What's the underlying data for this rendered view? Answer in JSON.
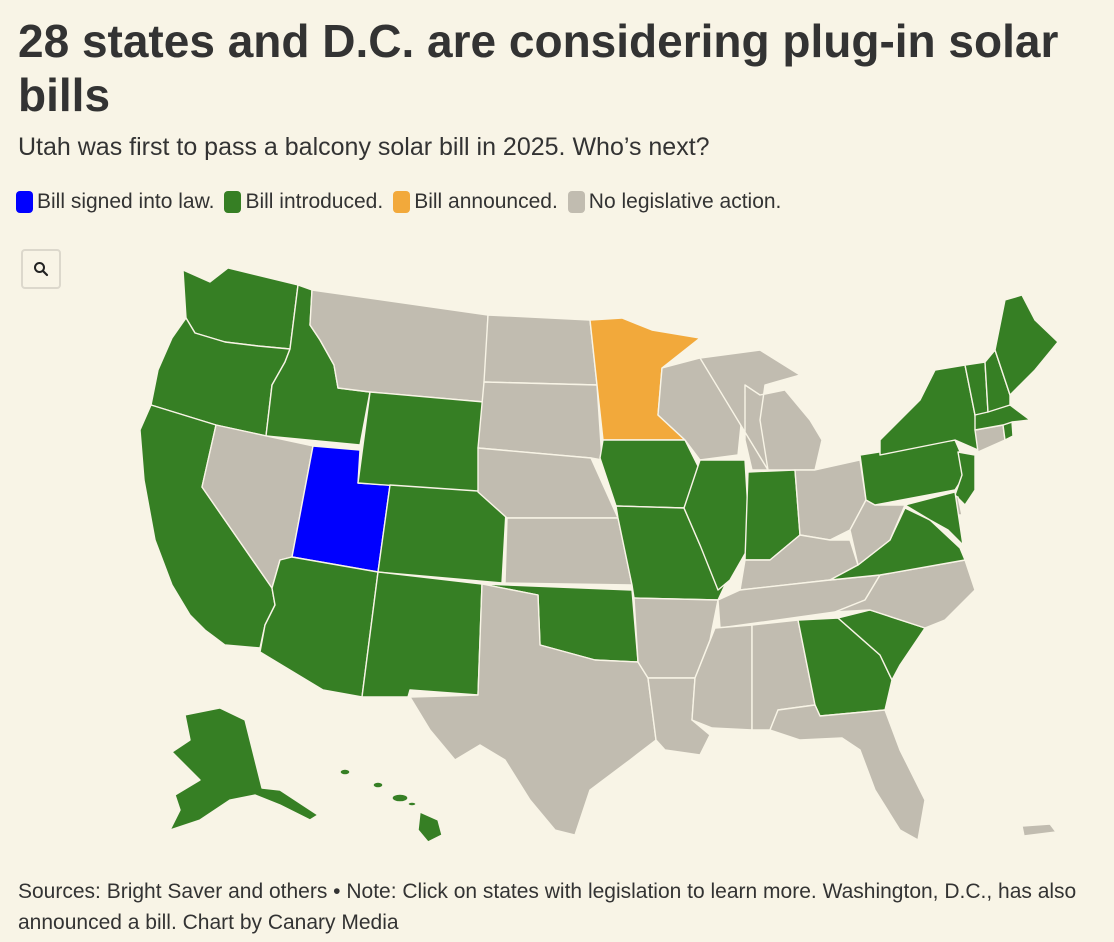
{
  "title": "28 states and D.C. are considering plug-in solar bills",
  "subtitle": "Utah was first to pass a balcony solar bill in 2025. Who’s next?",
  "legend": [
    {
      "label": "Bill signed into law.",
      "color": "#0000ff",
      "status": "signed"
    },
    {
      "label": "Bill introduced.",
      "color": "#367f24",
      "status": "introduced"
    },
    {
      "label": "Bill announced.",
      "color": "#f2a93b",
      "status": "announced"
    },
    {
      "label": "No legislative action.",
      "color": "#c1bcb0",
      "status": "none"
    }
  ],
  "zoom_icon": "search-icon",
  "footer": "Sources: Bright Saver and others • Note: Click on states with legislation to learn more. Washington, D.C., has also announced a bill. Chart by Canary Media",
  "states": {
    "WA": "introduced",
    "OR": "introduced",
    "CA": "introduced",
    "ID": "introduced",
    "NV": "none",
    "UT": "signed",
    "AZ": "introduced",
    "MT": "none",
    "WY": "introduced",
    "CO": "introduced",
    "NM": "introduced",
    "ND": "none",
    "SD": "none",
    "NE": "none",
    "KS": "none",
    "OK": "introduced",
    "TX": "none",
    "MN": "announced",
    "IA": "introduced",
    "MO": "introduced",
    "AR": "none",
    "LA": "none",
    "WI": "none",
    "IL": "introduced",
    "MI": "none",
    "IN": "introduced",
    "OH": "none",
    "KY": "none",
    "TN": "none",
    "MS": "none",
    "AL": "none",
    "GA": "introduced",
    "FL": "none",
    "SC": "introduced",
    "NC": "none",
    "VA": "introduced",
    "WV": "none",
    "PA": "introduced",
    "NY": "introduced",
    "NJ": "introduced",
    "DE": "none",
    "MD": "introduced",
    "CT": "none",
    "RI": "introduced",
    "MA": "introduced",
    "VT": "introduced",
    "NH": "introduced",
    "ME": "introduced",
    "AK": "introduced",
    "HI": "introduced",
    "PR": "none"
  }
}
